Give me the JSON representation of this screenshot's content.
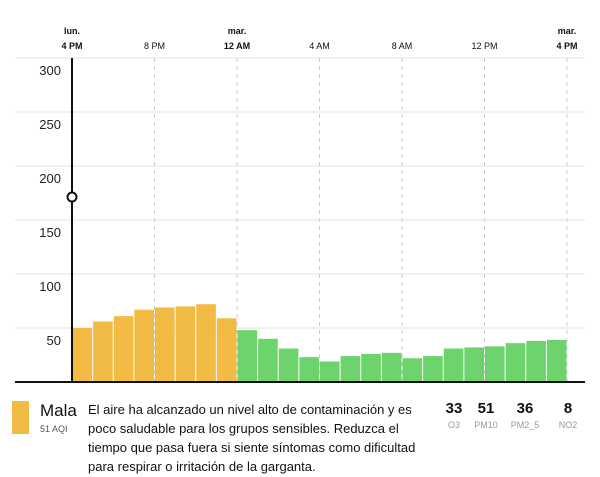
{
  "chart_data": {
    "type": "bar",
    "time_labels": [
      {
        "day": "lun.",
        "time": "4 PM"
      },
      {
        "time": "8 PM"
      },
      {
        "day": "mar.",
        "time": "12 AM"
      },
      {
        "time": "4 AM"
      },
      {
        "time": "8 AM"
      },
      {
        "time": "12 PM"
      },
      {
        "day": "mar.",
        "time": "4 PM"
      }
    ],
    "values": [
      50,
      56,
      61,
      67,
      69,
      70,
      72,
      59,
      48,
      40,
      31,
      23,
      19,
      24,
      26,
      27,
      22,
      24,
      31,
      32,
      33,
      36,
      38,
      39
    ],
    "colors": [
      "#f2bb44",
      "#f2bb44",
      "#f2bb44",
      "#f2bb44",
      "#f2bb44",
      "#f2bb44",
      "#f2bb44",
      "#f2bb44",
      "#6dd36d",
      "#6dd36d",
      "#6dd36d",
      "#6dd36d",
      "#6dd36d",
      "#6dd36d",
      "#6dd36d",
      "#6dd36d",
      "#6dd36d",
      "#6dd36d",
      "#6dd36d",
      "#6dd36d",
      "#6dd36d",
      "#6dd36d",
      "#6dd36d",
      "#6dd36d"
    ],
    "ylim": [
      0,
      300
    ],
    "yticks": [
      50,
      100,
      150,
      200,
      250,
      300
    ],
    "grid": true
  },
  "status": {
    "label": "Mala",
    "aqi": "51 AQI",
    "color": "#f2bb44",
    "description": "El aire ha alcanzado un nivel alto de contaminación y es poco saludable para los grupos sensibles. Reduzca el tiempo que pasa fuera si siente síntomas como dificultad para respirar o irritación de la garganta."
  },
  "pollutants": [
    {
      "value": 33,
      "name": "O3"
    },
    {
      "value": 51,
      "name": "PM10"
    },
    {
      "value": 36,
      "name": "PM2_5"
    },
    {
      "value": 8,
      "name": "NO2"
    }
  ]
}
